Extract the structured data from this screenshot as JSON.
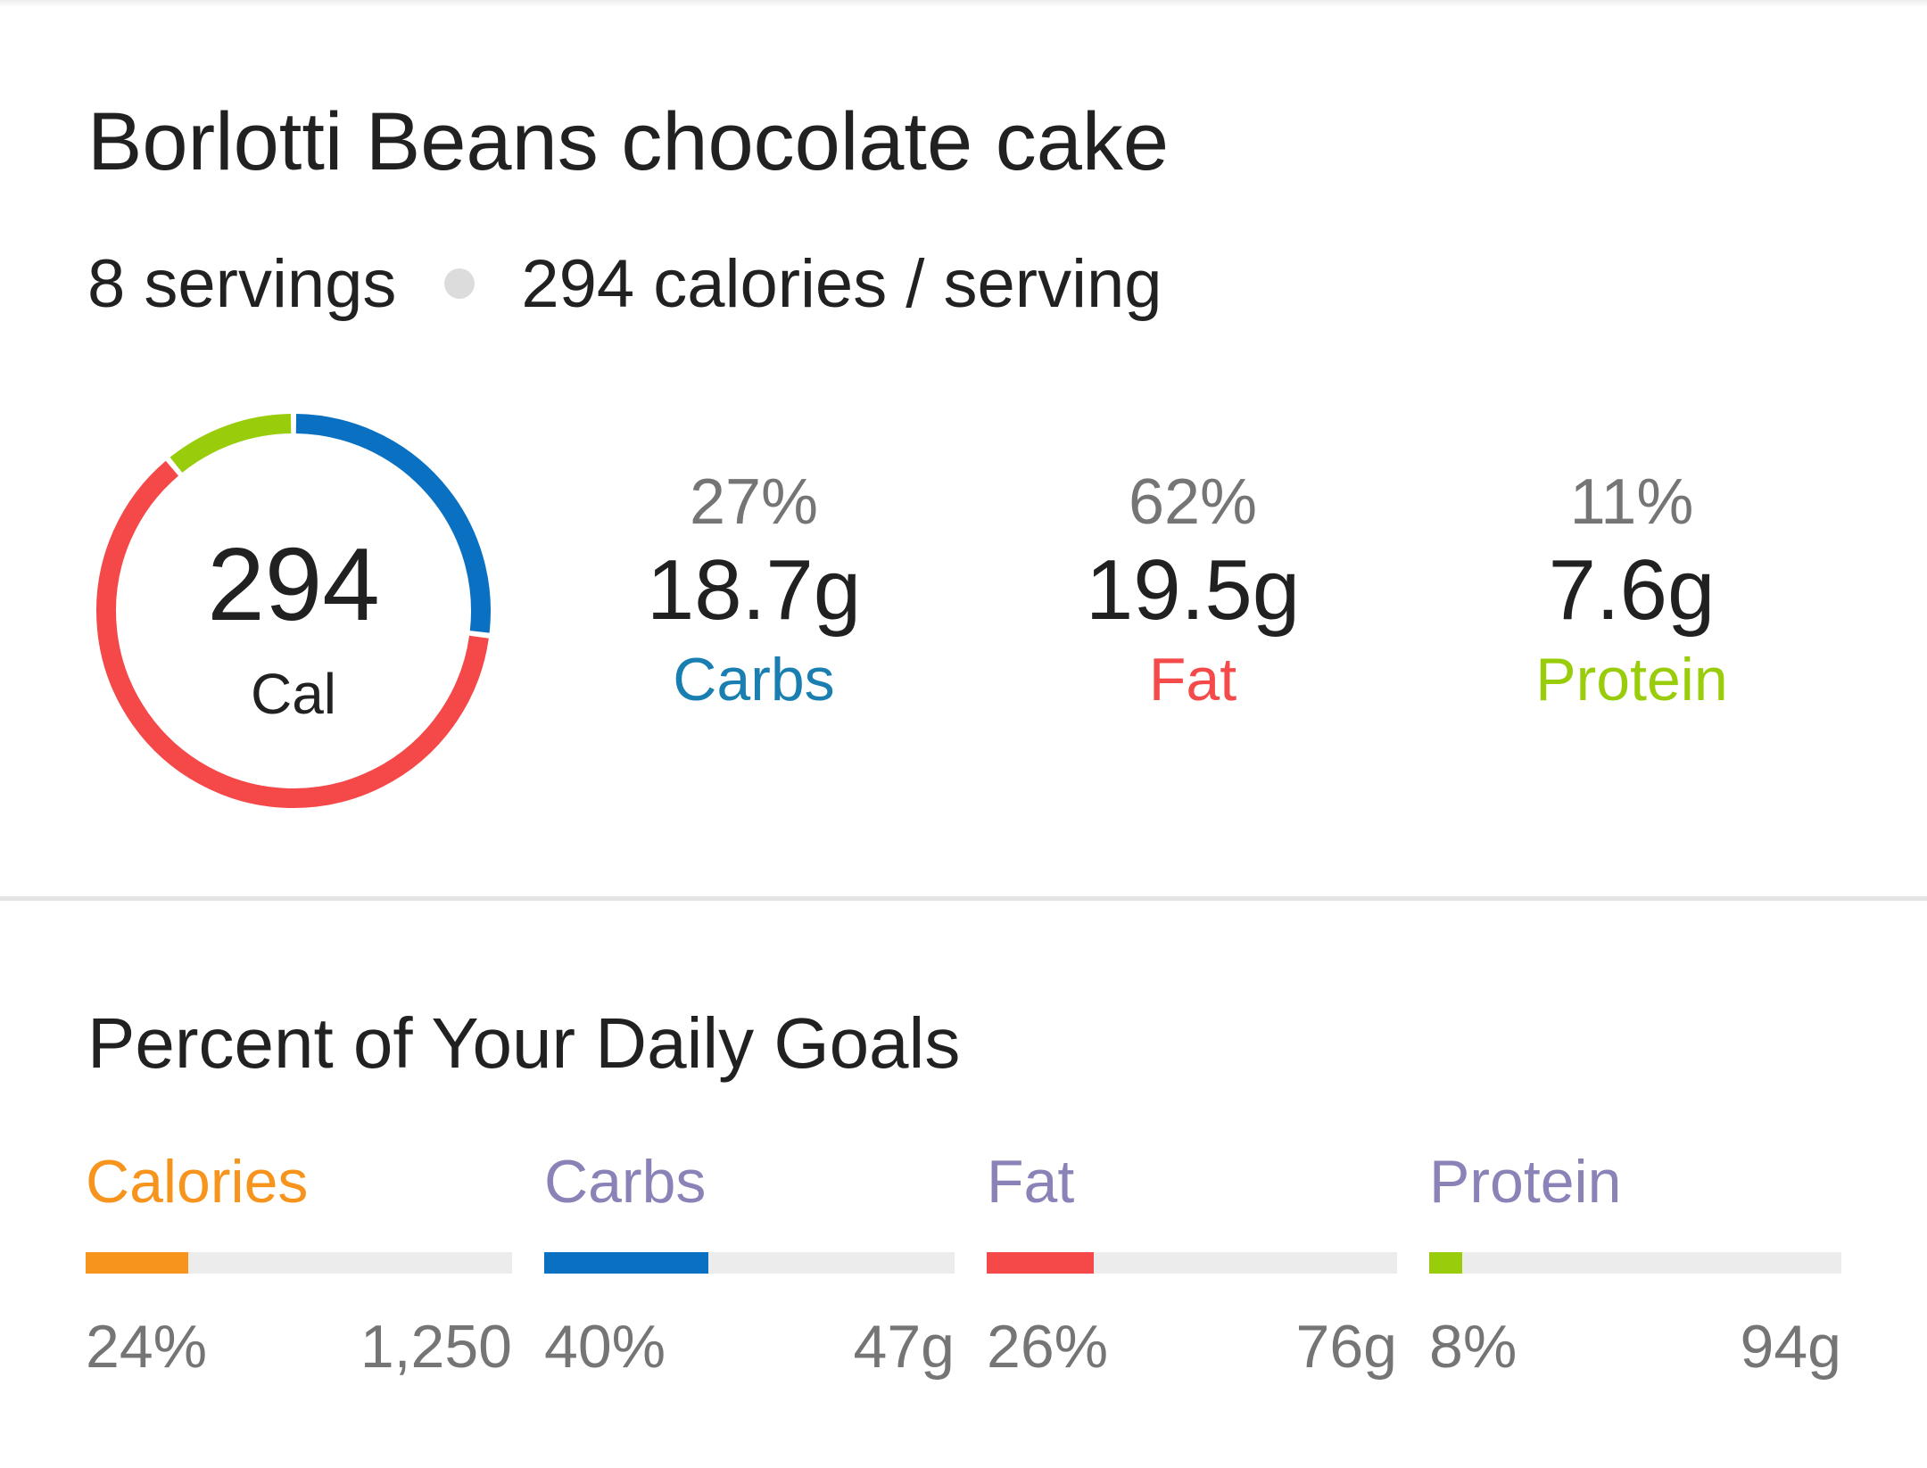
{
  "recipe": {
    "title": "Borlotti Beans chocolate cake",
    "servings": "8 servings",
    "calories_per_serving": "294 calories / serving"
  },
  "summary": {
    "calories_value": "294",
    "calories_unit": "Cal",
    "macros": [
      {
        "pct": "27%",
        "grams": "18.7g",
        "label": "Carbs",
        "color": "#1a7fb0",
        "share": 0.27
      },
      {
        "pct": "62%",
        "grams": "19.5g",
        "label": "Fat",
        "color": "#f44a4a",
        "share": 0.62
      },
      {
        "pct": "11%",
        "grams": "7.6g",
        "label": "Protein",
        "color": "#99cc0a",
        "share": 0.11
      }
    ],
    "ring_colors": {
      "carbs": "#0a70c2",
      "fat": "#f54848",
      "protein": "#99cc0a"
    }
  },
  "daily_goals": {
    "title": "Percent of Your Daily Goals",
    "items": [
      {
        "label": "Calories",
        "label_color": "#f7941d",
        "bar_color": "#f7941d",
        "percent": "24%",
        "fraction": 0.24,
        "goal": "1,250"
      },
      {
        "label": "Carbs",
        "label_color": "#8a83b8",
        "bar_color": "#0a70c2",
        "percent": "40%",
        "fraction": 0.4,
        "goal": "47g"
      },
      {
        "label": "Fat",
        "label_color": "#8a83b8",
        "bar_color": "#f54848",
        "percent": "26%",
        "fraction": 0.26,
        "goal": "76g"
      },
      {
        "label": "Protein",
        "label_color": "#8a83b8",
        "bar_color": "#99cc0a",
        "percent": "8%",
        "fraction": 0.08,
        "goal": "94g"
      }
    ]
  }
}
